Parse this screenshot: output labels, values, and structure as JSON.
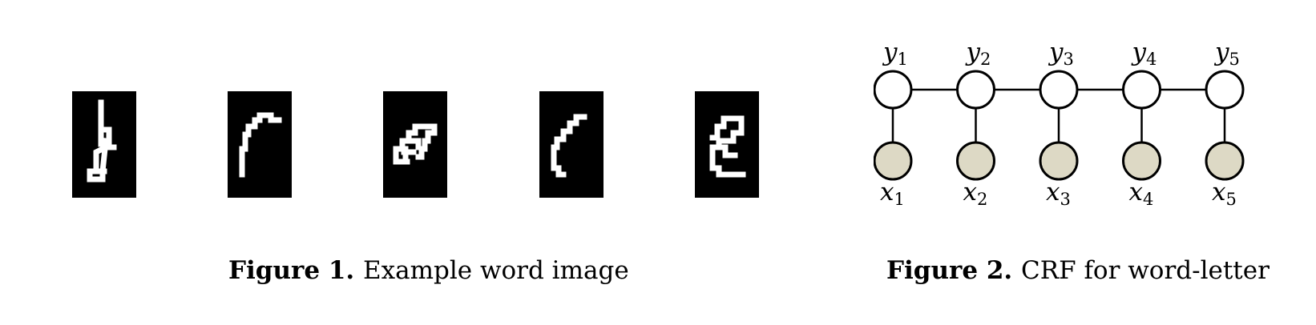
{
  "figure1": {
    "label": "Figure 1.",
    "text": "Example word image",
    "letter_count": 5
  },
  "figure2": {
    "label": "Figure 2.",
    "text": "CRF for word-letter",
    "hidden_nodes": [
      {
        "symbol": "y",
        "index": "1"
      },
      {
        "symbol": "y",
        "index": "2"
      },
      {
        "symbol": "y",
        "index": "3"
      },
      {
        "symbol": "y",
        "index": "4"
      },
      {
        "symbol": "y",
        "index": "5"
      }
    ],
    "observed_nodes": [
      {
        "symbol": "x",
        "index": "1"
      },
      {
        "symbol": "x",
        "index": "2"
      },
      {
        "symbol": "x",
        "index": "3"
      },
      {
        "symbol": "x",
        "index": "4"
      },
      {
        "symbol": "x",
        "index": "5"
      }
    ],
    "observed_fill": "#ddd9c5",
    "hidden_fill": "#ffffff"
  }
}
